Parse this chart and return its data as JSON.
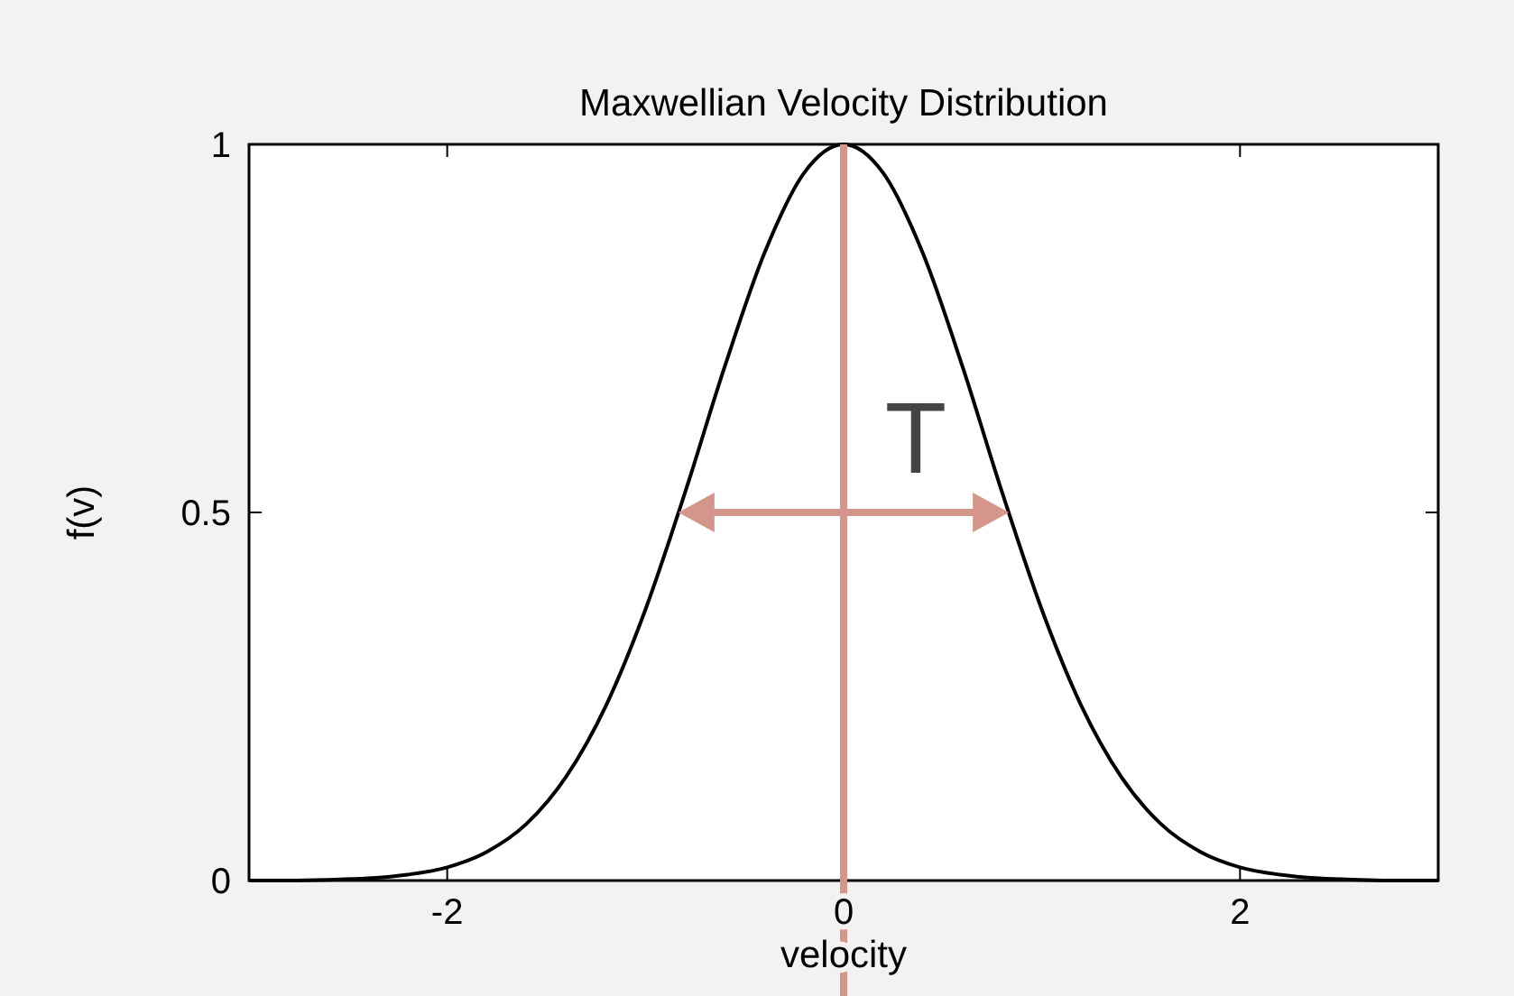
{
  "chart_data": {
    "type": "line",
    "title": "Maxwellian Velocity Distribution",
    "xlabel": "velocity",
    "ylabel": "f(v)",
    "x": [
      -3,
      -2.8,
      -2.6,
      -2.4,
      -2.2,
      -2,
      -1.8,
      -1.6,
      -1.4,
      -1.2,
      -1,
      -0.8,
      -0.6,
      -0.4,
      -0.2,
      0,
      0.2,
      0.4,
      0.6,
      0.8,
      1,
      1.2,
      1.4,
      1.6,
      1.8,
      2,
      2.2,
      2.4,
      2.6,
      2.8,
      3
    ],
    "series": [
      {
        "color": "#000000",
        "values": [
          0,
          0,
          0.001,
          0.003,
          0.008,
          0.018,
          0.039,
          0.077,
          0.141,
          0.237,
          0.368,
          0.527,
          0.698,
          0.852,
          0.961,
          1,
          0.961,
          0.852,
          0.698,
          0.527,
          0.368,
          0.237,
          0.141,
          0.077,
          0.039,
          0.018,
          0.008,
          0.003,
          0.001,
          0,
          0
        ]
      }
    ],
    "xlim": [
      -3,
      3
    ],
    "ylim": [
      0,
      1
    ],
    "xticks": [
      -2,
      0,
      2
    ],
    "yticks": [
      0,
      0.5,
      1
    ],
    "ref_lines": [
      {
        "axis": "x",
        "value": 0,
        "color": "#d4968a"
      }
    ],
    "annotations": [
      "T"
    ],
    "grid": false,
    "marker": "none",
    "line_style": "solid"
  }
}
